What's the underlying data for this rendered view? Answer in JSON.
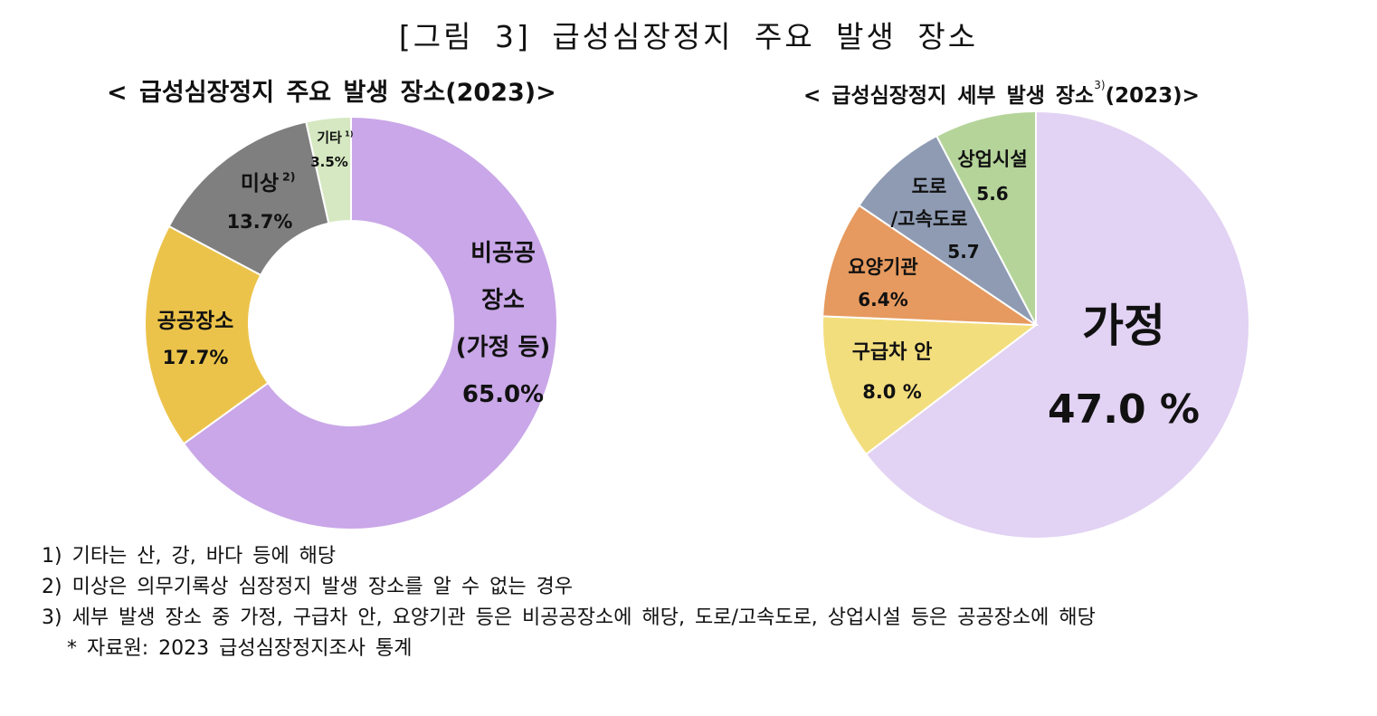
{
  "title": "[그림 3] 급성심장정지 주요 발생 장소",
  "charts": {
    "left_title": "< 급성심장정지 주요 발생 장소(2023)>",
    "right_title": "< 급성심장정지 세부 발생 장소",
    "right_title_sup": "3)",
    "right_title_tail": "(2023)>"
  },
  "chart_data": [
    {
      "type": "pie",
      "variant": "donut",
      "title": "< 급성심장정지 주요 발생 장소(2023)>",
      "unit": "%",
      "slices": [
        {
          "label_lines": [
            "비공공",
            "장소",
            "(가정 등)"
          ],
          "value_label": "65.0%",
          "value": 65.0,
          "color": "#c9a7e8"
        },
        {
          "label_lines": [
            "공공장소"
          ],
          "value_label": "17.7%",
          "value": 17.7,
          "color": "#ecc34a"
        },
        {
          "label_lines": [
            "미상"
          ],
          "footnote": "2)",
          "value_label": "13.7%",
          "value": 13.7,
          "color": "#7f7f7f"
        },
        {
          "label_lines": [
            "기타"
          ],
          "footnote": "1)",
          "value_label": "3.5%",
          "value": 3.5,
          "color": "#d5e8c1"
        }
      ]
    },
    {
      "type": "pie",
      "title": "< 급성심장정지 세부 발생 장소3)(2023)>",
      "unit": "%",
      "slices": [
        {
          "label_lines": [
            "가정"
          ],
          "value_label": "47.0 %",
          "value": 47.0,
          "color": "#e2d2f3"
        },
        {
          "label_lines": [
            "구급차 안"
          ],
          "value_label": "8.0 %",
          "value": 8.0,
          "color": "#f3de7e"
        },
        {
          "label_lines": [
            "요양기관"
          ],
          "value_label": "6.4%",
          "value": 6.4,
          "color": "#e69a5f"
        },
        {
          "label_lines": [
            "도로",
            "/고속도로"
          ],
          "value_label": "5.7",
          "value": 5.7,
          "color": "#8e9bb3"
        },
        {
          "label_lines": [
            "상업시설"
          ],
          "value_label": "5.6",
          "value": 5.6,
          "color": "#b5d49a"
        }
      ]
    }
  ],
  "notes": [
    "1) 기타는 산, 강, 바다 등에 해당",
    "2) 미상은 의무기록상 심장정지 발생 장소를 알 수 없는 경우",
    "3) 세부 발생 장소 중 가정, 구급차 안, 요양기관 등은 비공공장소에 해당, 도로/고속도로, 상업시설 등은 공공장소에 해당"
  ],
  "source": "* 자료원: 2023 급성심장정지조사 통계"
}
